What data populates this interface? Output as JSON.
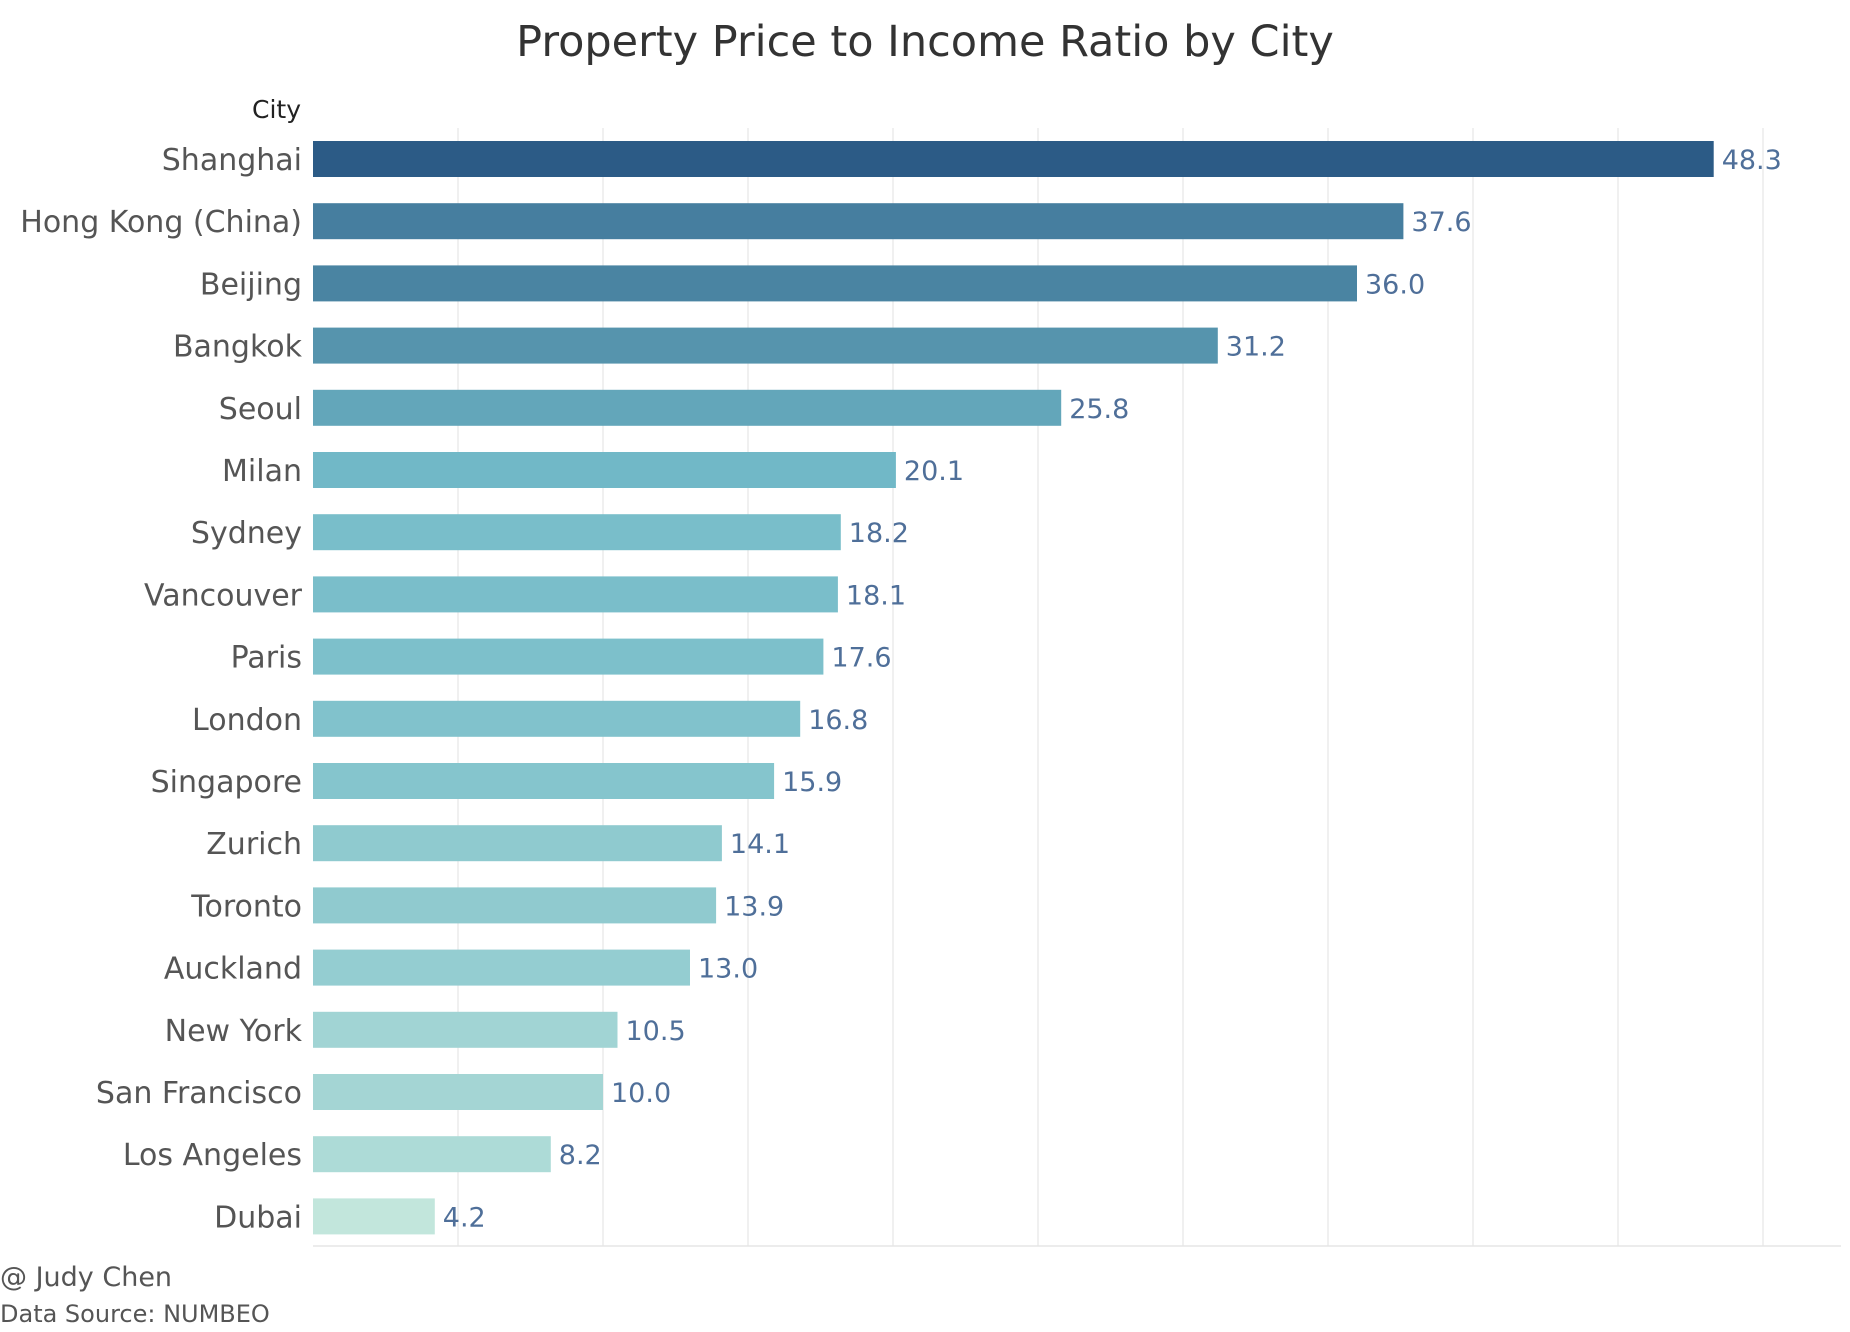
{
  "chart_data": {
    "type": "bar",
    "orientation": "horizontal",
    "title": "Property Price to Income Ratio by City",
    "category_axis_header": "City",
    "categories": [
      "Shanghai",
      "Hong Kong (China)",
      "Beijing",
      "Bangkok",
      "Seoul",
      "Milan",
      "Sydney",
      "Vancouver",
      "Paris",
      "London",
      "Singapore",
      "Zurich",
      "Toronto",
      "Auckland",
      "New York",
      "San Francisco",
      "Los Angeles",
      "Dubai"
    ],
    "values": [
      48.3,
      37.6,
      36.0,
      31.2,
      25.8,
      20.1,
      18.2,
      18.1,
      17.6,
      16.8,
      15.9,
      14.1,
      13.9,
      13.0,
      10.5,
      10.0,
      8.2,
      4.2
    ],
    "value_labels": [
      "48.3",
      "37.6",
      "36.0",
      "31.2",
      "25.8",
      "20.1",
      "18.2",
      "18.1",
      "17.6",
      "16.8",
      "15.9",
      "14.1",
      "13.9",
      "13.0",
      "10.5",
      "10.0",
      "8.2",
      "4.2"
    ],
    "xlim": [
      0,
      52
    ],
    "x_gridlines": [
      5,
      10,
      15,
      20,
      25,
      30,
      35,
      40,
      45,
      50
    ],
    "grid": true,
    "legend": "none",
    "color_scale": {
      "low": "#c2e6dc",
      "mid": "#72bac8",
      "high": "#2c5b86"
    },
    "label_color": "#4f6f99"
  },
  "footer": {
    "author": "@ Judy Chen",
    "source": "Data Source: NUMBEO"
  }
}
